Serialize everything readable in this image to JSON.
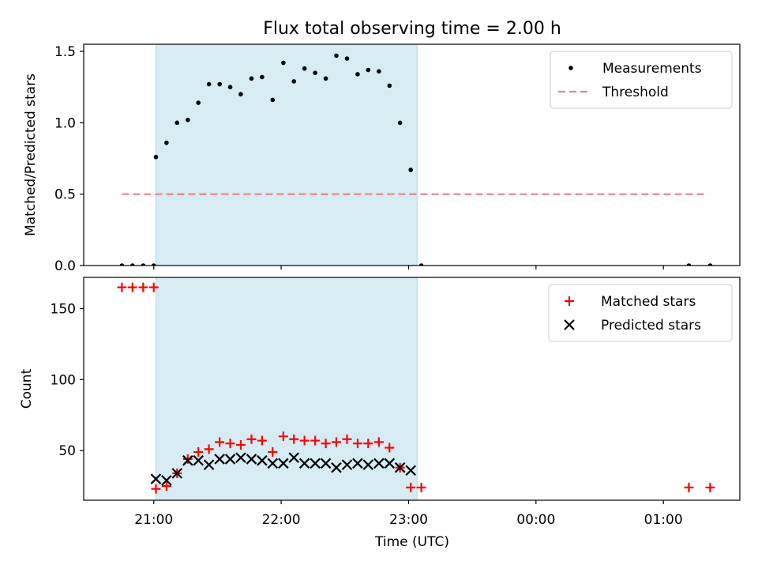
{
  "figure": {
    "title": "Flux total observing time = 2.00 h",
    "xlabel": "Time (UTC)",
    "x_ticks": [
      "21:00",
      "22:00",
      "23:00",
      "00:00",
      "01:00"
    ],
    "x_tick_hours": [
      21,
      22,
      23,
      24,
      25
    ],
    "highlight_span_hours": [
      21.0167,
      23.0667
    ],
    "highlight_color": "#add8e6",
    "xlim_hours": [
      20.45,
      25.6
    ]
  },
  "chart_data": [
    {
      "type": "scatter",
      "ylabel": "Matched/Predicted stars",
      "ylim": [
        0,
        1.55
      ],
      "y_ticks": [
        "0.0",
        "0.5",
        "1.0",
        "1.5"
      ],
      "y_tick_values": [
        0,
        0.5,
        1.0,
        1.5
      ],
      "legend": {
        "placement": "upper-right"
      },
      "threshold": {
        "name": "Threshold",
        "value": 0.5,
        "x_range_hours": [
          20.75,
          25.35
        ],
        "color": "#f08080"
      },
      "series": [
        {
          "name": "Measurements",
          "color": "#000000",
          "x_hours": [
            20.75,
            20.833,
            20.917,
            21.0,
            21.0167,
            21.1,
            21.183,
            21.267,
            21.35,
            21.433,
            21.517,
            21.6,
            21.683,
            21.767,
            21.85,
            21.933,
            22.017,
            22.1,
            22.183,
            22.267,
            22.35,
            22.433,
            22.517,
            22.6,
            22.683,
            22.767,
            22.85,
            22.933,
            23.017,
            23.1,
            25.2,
            25.367
          ],
          "y": [
            0,
            0,
            0,
            0,
            0.76,
            0.86,
            1.0,
            1.02,
            1.14,
            1.27,
            1.27,
            1.25,
            1.2,
            1.31,
            1.32,
            1.16,
            1.42,
            1.29,
            1.38,
            1.35,
            1.31,
            1.47,
            1.45,
            1.34,
            1.37,
            1.36,
            1.26,
            1.0,
            0.67,
            0.0,
            0.0,
            0.0
          ]
        }
      ]
    },
    {
      "type": "scatter",
      "ylabel": "Count",
      "ylim": [
        15,
        172
      ],
      "y_ticks": [
        "50",
        "100",
        "150"
      ],
      "y_tick_values": [
        50,
        100,
        150
      ],
      "legend": {
        "placement": "upper-right"
      },
      "series": [
        {
          "name": "Matched stars",
          "marker": "plus",
          "color": "#ff0000",
          "x_hours": [
            20.75,
            20.833,
            20.917,
            21.0,
            21.0167,
            21.1,
            21.183,
            21.267,
            21.35,
            21.433,
            21.517,
            21.6,
            21.683,
            21.767,
            21.85,
            21.933,
            22.017,
            22.1,
            22.183,
            22.267,
            22.35,
            22.433,
            22.517,
            22.6,
            22.683,
            22.767,
            22.85,
            22.933,
            23.017,
            23.1,
            25.2,
            25.367
          ],
          "y": [
            165,
            165,
            165,
            165,
            23,
            25,
            34,
            44,
            49,
            51,
            56,
            55,
            54,
            58,
            57,
            49,
            60,
            58,
            57,
            57,
            55,
            56,
            58,
            55,
            55,
            56,
            52,
            38,
            24,
            24,
            24,
            24
          ]
        },
        {
          "name": "Predicted stars",
          "marker": "x",
          "color": "#000000",
          "x_hours": [
            21.0167,
            21.1,
            21.183,
            21.267,
            21.35,
            21.433,
            21.517,
            21.6,
            21.683,
            21.767,
            21.85,
            21.933,
            22.017,
            22.1,
            22.183,
            22.267,
            22.35,
            22.433,
            22.517,
            22.6,
            22.683,
            22.767,
            22.85,
            22.933,
            23.017
          ],
          "y": [
            30,
            29,
            34,
            43,
            43,
            40,
            44,
            44,
            45,
            44,
            43,
            41,
            41,
            45,
            41,
            41,
            41,
            38,
            40,
            41,
            40,
            41,
            41,
            38,
            36
          ]
        }
      ]
    }
  ]
}
